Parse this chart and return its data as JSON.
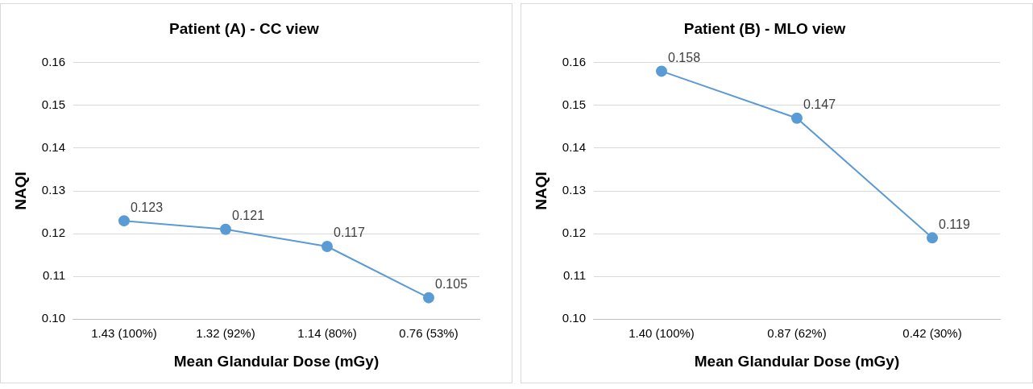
{
  "chart_data": [
    {
      "type": "line",
      "title": "Patient (A) - CC view",
      "xlabel": "Mean Glandular Dose (mGy)",
      "ylabel": "NAQI",
      "categories": [
        "1.43 (100%)",
        "1.32 (92%)",
        "1.14 (80%)",
        "0.76 (53%)"
      ],
      "series": [
        {
          "color": "#5b9bd5",
          "values": [
            0.123,
            0.121,
            0.117,
            0.105
          ]
        }
      ],
      "ylim": [
        0.1,
        0.16
      ],
      "yticks": [
        {
          "value": 0.1,
          "label": "0.10"
        },
        0.11,
        0.12,
        0.13,
        0.14,
        0.15,
        0.16
      ],
      "grid": "y",
      "legend": false,
      "marker": "circle",
      "line_style": "solid",
      "data_labels": true
    },
    {
      "type": "line",
      "title": "Patient (B) - MLO view",
      "xlabel": "Mean Glandular Dose (mGy)",
      "ylabel": "NAQI",
      "categories": [
        "1.40 (100%)",
        "0.87 (62%)",
        "0.42 (30%)"
      ],
      "series": [
        {
          "color": "#5b9bd5",
          "values": [
            0.158,
            0.147,
            0.119
          ]
        }
      ],
      "ylim": [
        0.1,
        0.16
      ],
      "yticks": [
        {
          "value": 0.1,
          "label": "0.10"
        },
        0.11,
        0.12,
        0.13,
        0.14,
        0.15,
        0.16
      ],
      "grid": "y",
      "legend": false,
      "marker": "circle",
      "line_style": "solid",
      "data_labels": true
    }
  ]
}
